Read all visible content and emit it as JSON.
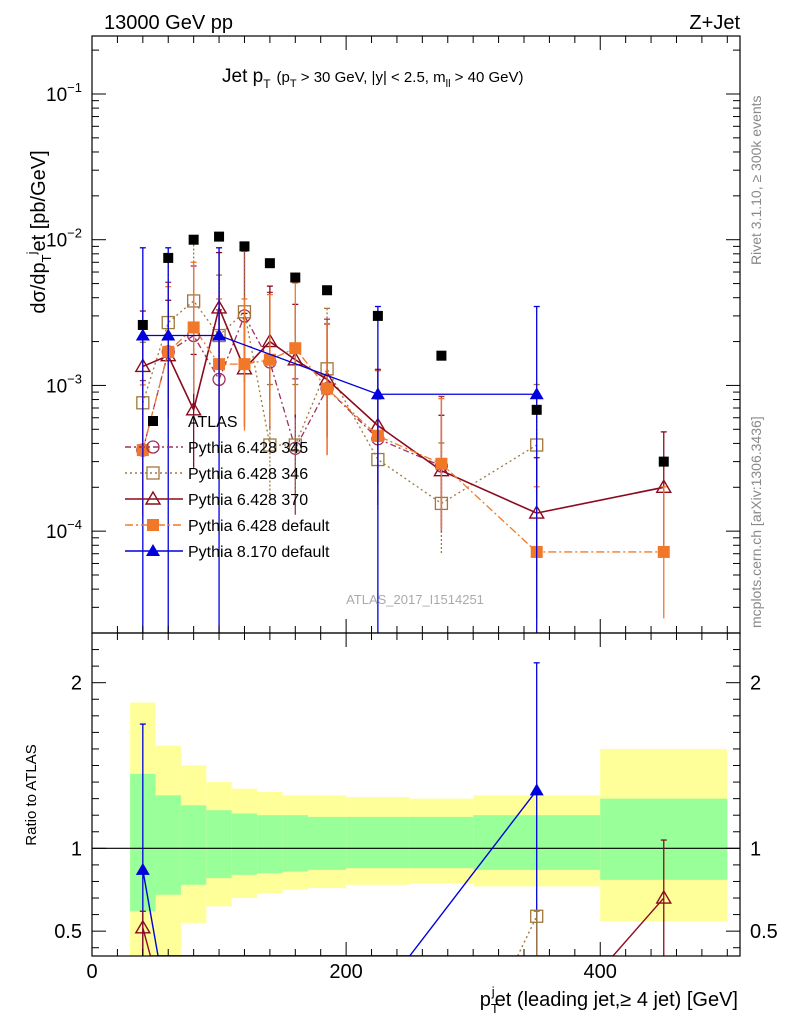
{
  "header": {
    "left_title": "13000 GeV pp",
    "right_title": "Z+Jet"
  },
  "plot_title": {
    "main": "Jet p",
    "main_sub": "T",
    "cond_open": "(p",
    "cond_sub": "T",
    "cond_rest": " > 30 GeV, |y| < 2.5, m",
    "cond_sub2": "ll",
    "cond_close": " > 40 GeV)"
  },
  "side_labels": {
    "rivet": "Rivet 3.1.10, ≥ 300k events",
    "mcplots": "mcplots.cern.ch [arXiv:1306.3436]"
  },
  "watermark": "ATLAS_2017_I1514251",
  "axes": {
    "ylabel_main": "dσ/dp",
    "ylabel_sub": "T",
    "ylabel_sup": "j",
    "ylabel_rest": "et [pb/GeV]",
    "ylabel_ratio": "Ratio to ATLAS",
    "xlabel_pre": "p",
    "xlabel_sub": "T",
    "xlabel_sup": "j",
    "xlabel_rest": "et (leading jet,≥ 4 jet) [GeV]"
  },
  "colors": {
    "atlas": "#000000",
    "p345": "#a0305a",
    "p346": "#a0783c",
    "p370": "#8b0a1e",
    "pdef": "#f07828",
    "p8": "#0000dd",
    "band_inner": "#99ff99",
    "band_outer": "#ffff99"
  },
  "chart_data": {
    "type": "scatter",
    "x_range": [
      0,
      510
    ],
    "y_log_range": [
      2e-05,
      0.25
    ],
    "ratio_range": [
      0.35,
      2.3
    ],
    "xticks": [
      {
        "v": 0,
        "label": "0"
      },
      {
        "v": 200,
        "label": "200"
      },
      {
        "v": 400,
        "label": "400"
      }
    ],
    "yticks": [
      {
        "v": 0.1,
        "base": "10",
        "exp": "−1"
      },
      {
        "v": 0.01,
        "base": "10",
        "exp": "−2"
      },
      {
        "v": 0.001,
        "base": "10",
        "exp": "−3"
      },
      {
        "v": 0.0001,
        "base": "10",
        "exp": "−4"
      }
    ],
    "ratio_ticks": [
      {
        "v": 0.5,
        "label": "0.5"
      },
      {
        "v": 1,
        "label": "1"
      },
      {
        "v": 2,
        "label": "2"
      }
    ],
    "data": {
      "name": "ATLAS",
      "x": [
        40,
        60,
        80,
        100,
        120,
        140,
        160,
        185,
        225,
        275,
        350,
        450
      ],
      "y": [
        0.0026,
        0.0075,
        0.01,
        0.0105,
        0.009,
        0.0069,
        0.0055,
        0.0045,
        0.003,
        0.0016,
        0.00068,
        0.0003
      ]
    },
    "band": {
      "edges": [
        30,
        50,
        70,
        90,
        110,
        130,
        150,
        170,
        200,
        250,
        300,
        400,
        500
      ],
      "inner": [
        [
          0.62,
          1.45
        ],
        [
          0.72,
          1.32
        ],
        [
          0.78,
          1.26
        ],
        [
          0.82,
          1.23
        ],
        [
          0.84,
          1.21
        ],
        [
          0.85,
          1.2
        ],
        [
          0.86,
          1.2
        ],
        [
          0.87,
          1.19
        ],
        [
          0.88,
          1.19
        ],
        [
          0.88,
          1.19
        ],
        [
          0.87,
          1.2
        ],
        [
          0.81,
          1.3
        ]
      ],
      "outer": [
        [
          0.35,
          1.88
        ],
        [
          0.35,
          1.62
        ],
        [
          0.55,
          1.5
        ],
        [
          0.65,
          1.4
        ],
        [
          0.7,
          1.36
        ],
        [
          0.73,
          1.34
        ],
        [
          0.75,
          1.32
        ],
        [
          0.76,
          1.32
        ],
        [
          0.78,
          1.31
        ],
        [
          0.79,
          1.3
        ],
        [
          0.77,
          1.32
        ],
        [
          0.56,
          1.6
        ]
      ]
    },
    "series": [
      {
        "name": "Pythia 6.428 345",
        "key": "p345",
        "marker": "circle-open",
        "dash": "6,3,2,3",
        "x": [
          40,
          60,
          80,
          100,
          120,
          140,
          160,
          185,
          225,
          275
        ],
        "y": [
          0.00036,
          0.0017,
          0.0022,
          0.0011,
          0.003,
          0.00145,
          0.00037,
          0.00095,
          0.00043,
          0.00028
        ],
        "ratio_x": [
          40,
          47
        ],
        "ratio_y": [
          0.27,
          0.35
        ]
      },
      {
        "name": "Pythia 6.428 346",
        "key": "p346",
        "marker": "square-open",
        "dash": "2,3",
        "x": [
          40,
          60,
          80,
          100,
          120,
          140,
          160,
          185,
          225,
          275,
          350
        ],
        "y": [
          0.00076,
          0.0027,
          0.0038,
          0.0022,
          0.0032,
          0.00039,
          0.00039,
          0.0013,
          0.00031,
          0.000155,
          0.00039
        ],
        "ratio_x": [
          335,
          350
        ],
        "ratio_y": [
          0.35,
          0.59
        ]
      },
      {
        "name": "Pythia 6.428 370",
        "key": "p370",
        "marker": "triangle-open",
        "dash": "",
        "x": [
          40,
          60,
          80,
          100,
          120,
          140,
          160,
          185,
          225,
          275,
          350,
          450
        ],
        "y": [
          0.00135,
          0.0016,
          0.00068,
          0.0034,
          0.0013,
          0.002,
          0.0015,
          0.0011,
          0.00053,
          0.00026,
          0.000133,
          0.0002
        ],
        "ratio_x": [
          40,
          46,
          410,
          450
        ],
        "ratio_y": [
          0.52,
          0.35,
          0.35,
          0.7
        ]
      },
      {
        "name": "Pythia 6.428 default",
        "key": "pdef",
        "marker": "square-filled",
        "dash": "8,3,2,3",
        "x": [
          40,
          60,
          80,
          100,
          120,
          140,
          160,
          185,
          225,
          275,
          350,
          450
        ],
        "y": [
          0.00036,
          0.0017,
          0.0025,
          0.0014,
          0.0014,
          0.0015,
          0.0018,
          0.00095,
          0.00045,
          0.00029,
          7.2e-05,
          7.2e-05
        ],
        "ratio_x": [],
        "ratio_y": []
      },
      {
        "name": "Pythia 8.170 default",
        "key": "p8",
        "marker": "triangle-filled",
        "dash": "",
        "x": [
          40,
          60,
          100,
          225,
          350
        ],
        "y": [
          0.0022,
          0.0022,
          0.0022,
          0.00087,
          0.00087
        ],
        "ratio_x": [
          40,
          52,
          250,
          350
        ],
        "ratio_y": [
          0.87,
          0.35,
          0.35,
          1.35
        ]
      }
    ]
  }
}
